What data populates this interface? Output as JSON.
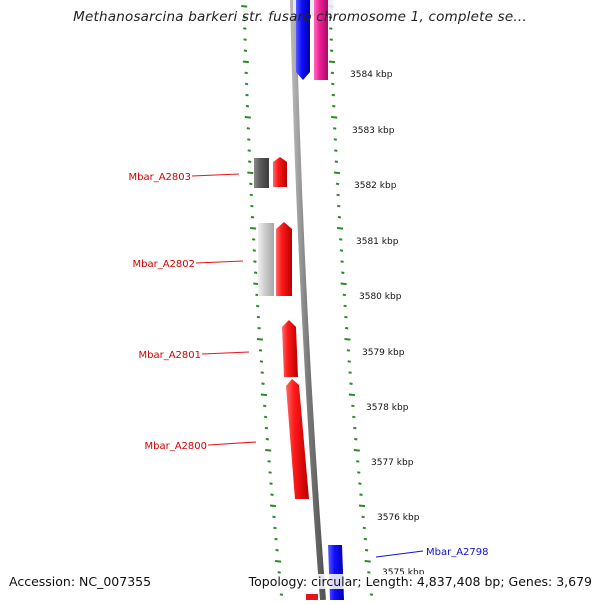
{
  "title": "Methanosarcina barkeri str. fusaro chromosome 1, complete se...",
  "accession": "Accession: NC_007355",
  "summary": "Topology: circular; Length: 4,837,408 bp; Genes: 3,679",
  "scale_labels": [
    "3584 kbp",
    "3583 kbp",
    "3582 kbp",
    "3581 kbp",
    "3580 kbp",
    "3579 kbp",
    "3578 kbp",
    "3577 kbp",
    "3576 kbp",
    "3575 kbp"
  ],
  "genes": [
    {
      "id": "g2803",
      "label": "Mbar_A2803",
      "color": "#e8141c"
    },
    {
      "id": "g2802",
      "label": "Mbar_A2802",
      "color": "#e8141c"
    },
    {
      "id": "g2801",
      "label": "Mbar_A2801",
      "color": "#e8141c"
    },
    {
      "id": "g2800",
      "label": "Mbar_A2800",
      "color": "#e8141c"
    },
    {
      "id": "g2798",
      "label": "Mbar_A2798",
      "color": "#1010e0"
    }
  ],
  "colors": {
    "forward_gene": "#e8141c",
    "reverse_gene": "#1010e0",
    "pink_feature": "#e0208a",
    "backbone": "#8a8a8a",
    "tick_marks": "#2a8a2a"
  }
}
